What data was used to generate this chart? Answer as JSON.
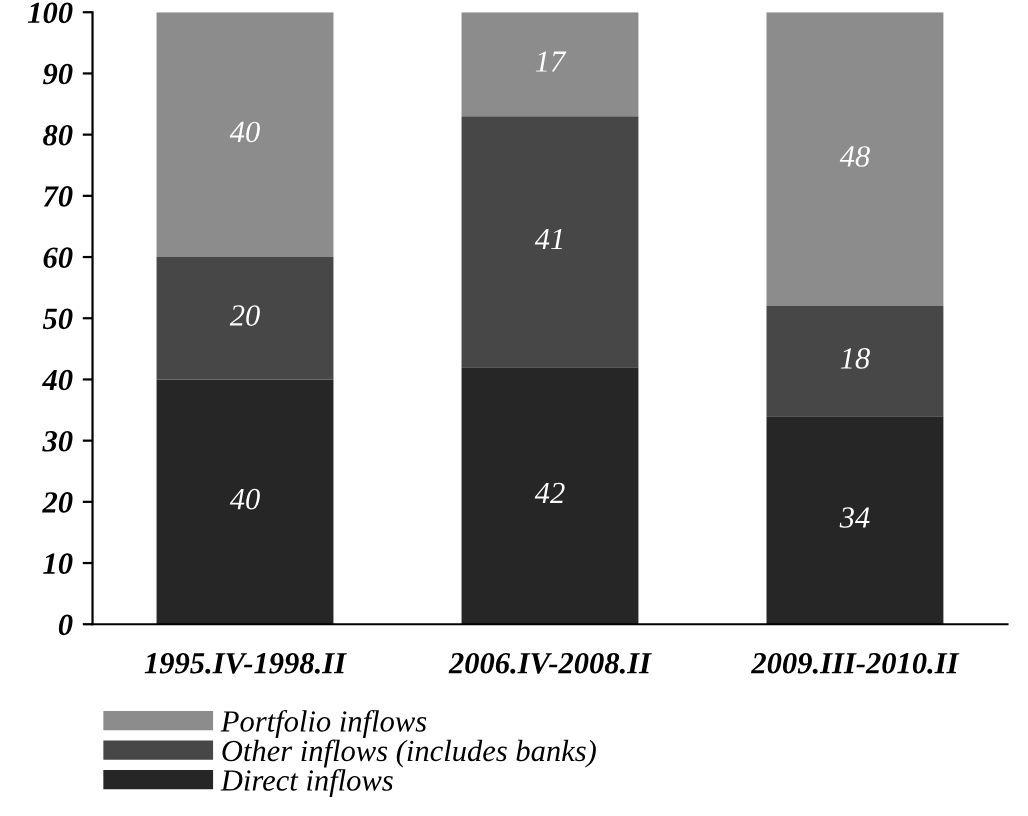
{
  "chart_data": {
    "type": "bar",
    "stacked": true,
    "categories": [
      "1995.IV-1998.II",
      "2006.IV-2008.II",
      "2009.III-2010.II"
    ],
    "series": [
      {
        "name": "Direct inflows",
        "color": "#262626",
        "values": [
          40,
          42,
          34
        ]
      },
      {
        "name": "Other inflows (includes banks)",
        "color": "#474747",
        "values": [
          20,
          41,
          18
        ]
      },
      {
        "name": "Portfolio inflows",
        "color": "#8c8c8c",
        "values": [
          40,
          17,
          48
        ]
      }
    ],
    "ylim": [
      0,
      100
    ],
    "yticks": [
      0,
      10,
      20,
      30,
      40,
      50,
      60,
      70,
      80,
      90,
      100
    ],
    "grid": false,
    "legend": "bottom",
    "data_labels": true
  }
}
